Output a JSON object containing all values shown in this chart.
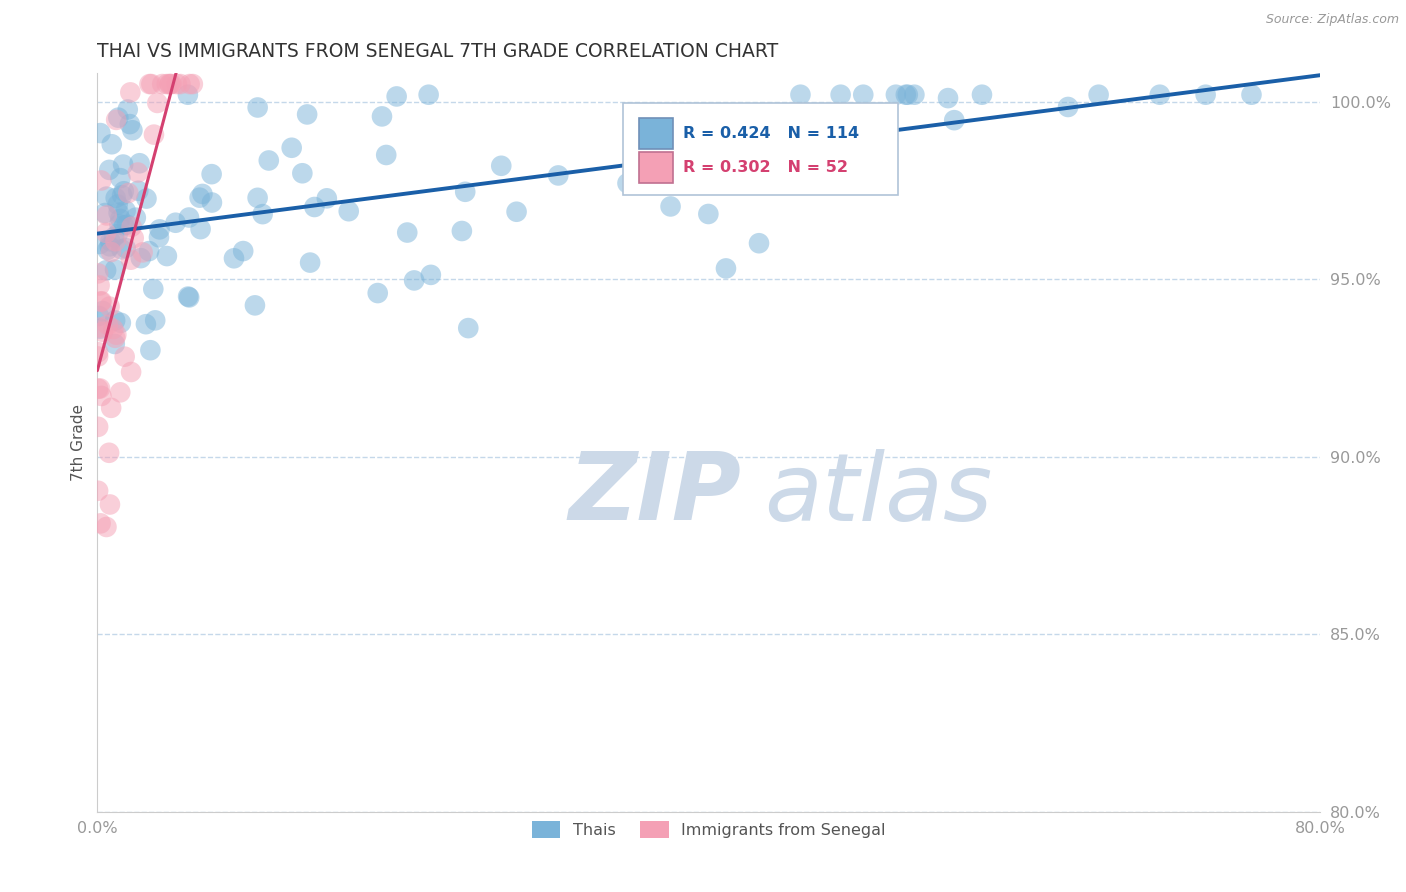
{
  "title": "THAI VS IMMIGRANTS FROM SENEGAL 7TH GRADE CORRELATION CHART",
  "source": "Source: ZipAtlas.com",
  "ylabel": "7th Grade",
  "xlim": [
    0.0,
    0.8
  ],
  "ylim": [
    0.8,
    1.008
  ],
  "yticks": [
    0.8,
    0.85,
    0.9,
    0.95,
    1.0
  ],
  "ytick_labels": [
    "80.0%",
    "85.0%",
    "90.0%",
    "95.0%",
    "100.0%"
  ],
  "xticks": [
    0.0,
    0.1,
    0.2,
    0.3,
    0.4,
    0.5,
    0.6,
    0.7,
    0.8
  ],
  "xtick_labels": [
    "0.0%",
    "",
    "",
    "",
    "",
    "",
    "",
    "",
    "80.0%"
  ],
  "legend_blue_label": "Thais",
  "legend_pink_label": "Immigrants from Senegal",
  "R_blue": 0.424,
  "N_blue": 114,
  "R_pink": 0.302,
  "N_pink": 52,
  "blue_color": "#7ab3d9",
  "pink_color": "#f4a0b5",
  "blue_line_color": "#1a5fa8",
  "pink_line_color": "#d44070",
  "title_color": "#333333",
  "title_fontsize": 13.5,
  "axis_label_color": "#555555",
  "tick_color": "#999999",
  "grid_color": "#c5d8ea",
  "watermark_zip": "ZIP",
  "watermark_atlas": "atlas",
  "watermark_color": "#ccd9e8",
  "watermark_fontsize": 68,
  "legend_box_color": "#e8eef5",
  "legend_border_color": "#b0c4d8"
}
